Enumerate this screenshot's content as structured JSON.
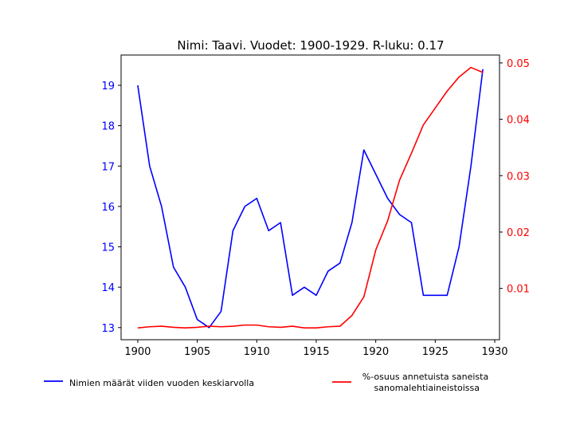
{
  "chart_data": {
    "type": "line",
    "title": "Nimi: Taavi. Vuodet: 1900-1929. R-luku: 0.17",
    "xlabel": "",
    "x": [
      1900,
      1901,
      1902,
      1903,
      1904,
      1905,
      1906,
      1907,
      1908,
      1909,
      1910,
      1911,
      1912,
      1913,
      1914,
      1915,
      1916,
      1917,
      1918,
      1919,
      1920,
      1921,
      1922,
      1923,
      1924,
      1925,
      1926,
      1927,
      1928,
      1929
    ],
    "x_ticks": [
      1900,
      1905,
      1910,
      1915,
      1920,
      1925,
      1930
    ],
    "xlim": [
      1898.6,
      1930.4
    ],
    "left_axis": {
      "ylabel": "",
      "ylim": [
        12.7,
        19.75
      ],
      "ticks": [
        13,
        14,
        15,
        16,
        17,
        18,
        19
      ],
      "color": "#0000ff"
    },
    "right_axis": {
      "ylabel": "",
      "ylim": [
        0.0009,
        0.0514
      ],
      "ticks": [
        0.01,
        0.02,
        0.03,
        0.04,
        0.05
      ],
      "tick_labels": [
        "0.01",
        "0.02",
        "0.03",
        "0.04",
        "0.05"
      ],
      "color": "#ff0000"
    },
    "series": [
      {
        "name": "Nimien määrät viiden vuoden keskiarvolla",
        "axis": "left",
        "color": "#0000ff",
        "values": [
          19.0,
          17.0,
          16.0,
          14.5,
          14.0,
          13.2,
          13.0,
          13.4,
          15.4,
          16.0,
          16.2,
          15.4,
          15.6,
          13.8,
          14.0,
          13.8,
          14.4,
          14.6,
          15.6,
          17.4,
          16.8,
          16.2,
          15.8,
          15.6,
          13.8,
          13.8,
          13.8,
          15.0,
          17.0,
          19.4
        ]
      },
      {
        "name": "%-osuus annetuista saneista\n sanomalehtiaineistoissa",
        "axis": "right",
        "color": "#ff0000",
        "values": [
          0.003,
          0.0032,
          0.0033,
          0.0031,
          0.003,
          0.0031,
          0.0033,
          0.0032,
          0.0033,
          0.0035,
          0.0035,
          0.0032,
          0.0031,
          0.0033,
          0.003,
          0.003,
          0.0032,
          0.0033,
          0.0052,
          0.0085,
          0.0168,
          0.022,
          0.0292,
          0.034,
          0.039,
          0.042,
          0.045,
          0.0475,
          0.0492,
          0.0483
        ]
      }
    ],
    "legend_placement": "below"
  }
}
